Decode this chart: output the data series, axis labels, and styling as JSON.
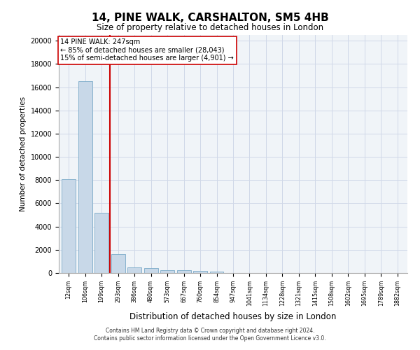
{
  "title": "14, PINE WALK, CARSHALTON, SM5 4HB",
  "subtitle": "Size of property relative to detached houses in London",
  "xlabel": "Distribution of detached houses by size in London",
  "ylabel": "Number of detached properties",
  "categories": [
    "12sqm",
    "106sqm",
    "199sqm",
    "293sqm",
    "386sqm",
    "480sqm",
    "573sqm",
    "667sqm",
    "760sqm",
    "854sqm",
    "947sqm",
    "1041sqm",
    "1134sqm",
    "1228sqm",
    "1321sqm",
    "1415sqm",
    "1508sqm",
    "1602sqm",
    "1695sqm",
    "1789sqm",
    "1882sqm"
  ],
  "values": [
    8050,
    16500,
    5200,
    1650,
    500,
    430,
    270,
    220,
    180,
    100,
    0,
    0,
    0,
    0,
    0,
    0,
    0,
    0,
    0,
    0,
    0
  ],
  "bar_color": "#c8d8e8",
  "bar_edge_color": "#7baac8",
  "vline_x": 2.5,
  "vline_color": "#cc0000",
  "annotation_text": "14 PINE WALK: 247sqm\n← 85% of detached houses are smaller (28,043)\n15% of semi-detached houses are larger (4,901) →",
  "annotation_box_color": "#ffffff",
  "annotation_box_edge_color": "#cc0000",
  "ylim": [
    0,
    20500
  ],
  "yticks": [
    0,
    2000,
    4000,
    6000,
    8000,
    10000,
    12000,
    14000,
    16000,
    18000,
    20000
  ],
  "grid_color": "#d0d8e8",
  "footer_line1": "Contains HM Land Registry data © Crown copyright and database right 2024.",
  "footer_line2": "Contains public sector information licensed under the Open Government Licence v3.0.",
  "bg_color": "#f0f4f8"
}
